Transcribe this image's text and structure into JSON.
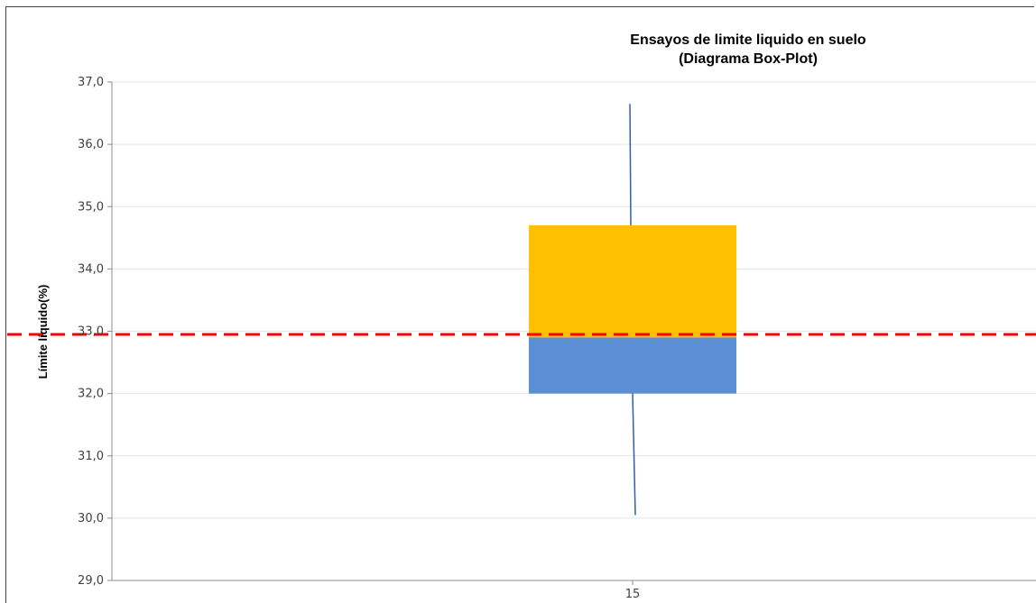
{
  "chart_data": {
    "type": "boxplot",
    "title": [
      "Ensayos de limite liquido en suelo",
      "(Diagrama  Box-Plot)"
    ],
    "xlabel": "",
    "ylabel": "Límite líquido(%)",
    "categories": [
      "15"
    ],
    "ylim": [
      29.0,
      37.0
    ],
    "y_ticks": [
      "29,0",
      "30,0",
      "31,0",
      "32,0",
      "33,0",
      "34,0",
      "35,0",
      "36,0",
      "37,0"
    ],
    "grid": true,
    "boxes": [
      {
        "category": "15",
        "min": 30.05,
        "q1": 32.0,
        "median": 32.9,
        "q3": 34.7,
        "max": 36.65,
        "lower_color": "#5B8FD4",
        "upper_color": "#FFC000",
        "whisker_color": "#2E5FA8"
      }
    ],
    "reference_line": {
      "value": 32.95,
      "style": "dashed",
      "color": "#FF0000"
    }
  }
}
